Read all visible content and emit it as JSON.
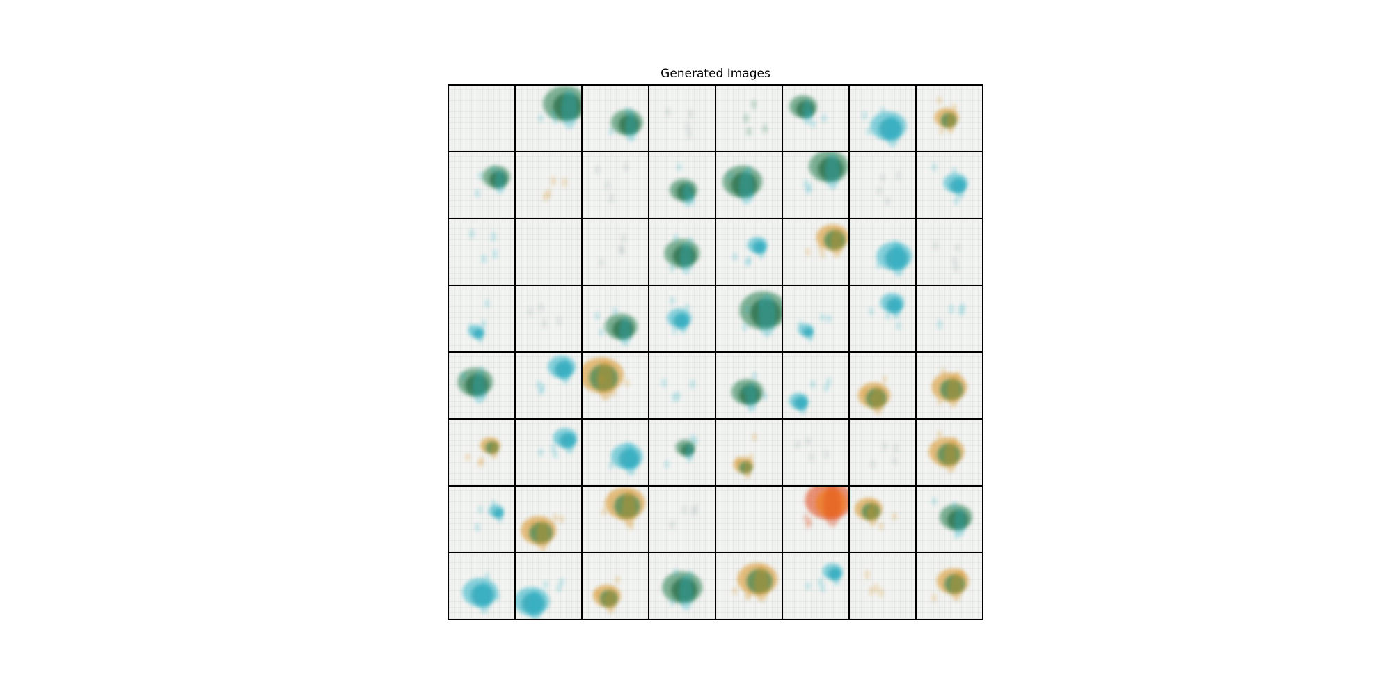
{
  "title": "Generated Images",
  "grid": {
    "rows": 8,
    "cols": 8
  },
  "palette": {
    "green": "#1f7a4a",
    "teal": "#2bb3c8",
    "orange": "#d8901e",
    "red": "#e04010",
    "background": "#f2f2f0",
    "border": "#000000"
  },
  "tiles": [
    [
      {
        "c": "none"
      },
      {
        "c": "green",
        "s": 0.55
      },
      {
        "c": "green",
        "s": 0.4
      },
      {
        "c": "faint"
      },
      {
        "c": "faint-green"
      },
      {
        "c": "green",
        "s": 0.35
      },
      {
        "c": "teal",
        "s": 0.45
      },
      {
        "c": "orange",
        "s": 0.3
      }
    ],
    [
      {
        "c": "green",
        "s": 0.35
      },
      {
        "c": "faint-orange"
      },
      {
        "c": "faint"
      },
      {
        "c": "green",
        "s": 0.35
      },
      {
        "c": "green",
        "s": 0.5
      },
      {
        "c": "green",
        "s": 0.5
      },
      {
        "c": "faint"
      },
      {
        "c": "teal",
        "s": 0.3
      }
    ],
    [
      {
        "c": "faint-teal"
      },
      {
        "c": "none"
      },
      {
        "c": "faint"
      },
      {
        "c": "green",
        "s": 0.45
      },
      {
        "c": "teal",
        "s": 0.25
      },
      {
        "c": "orange",
        "s": 0.4
      },
      {
        "c": "teal",
        "s": 0.45
      },
      {
        "c": "faint"
      }
    ],
    [
      {
        "c": "teal",
        "s": 0.2
      },
      {
        "c": "faint"
      },
      {
        "c": "green",
        "s": 0.4
      },
      {
        "c": "teal",
        "s": 0.3
      },
      {
        "c": "green",
        "s": 0.6
      },
      {
        "c": "teal",
        "s": 0.2
      },
      {
        "c": "teal",
        "s": 0.3
      },
      {
        "c": "faint-teal"
      }
    ],
    [
      {
        "c": "green",
        "s": 0.45
      },
      {
        "c": "teal",
        "s": 0.35
      },
      {
        "c": "orange",
        "s": 0.55
      },
      {
        "c": "faint-teal"
      },
      {
        "c": "green",
        "s": 0.4
      },
      {
        "c": "teal",
        "s": 0.25
      },
      {
        "c": "orange",
        "s": 0.4
      },
      {
        "c": "orange",
        "s": 0.45
      }
    ],
    [
      {
        "c": "orange",
        "s": 0.25
      },
      {
        "c": "teal",
        "s": 0.3
      },
      {
        "c": "teal",
        "s": 0.4
      },
      {
        "c": "green",
        "s": 0.25
      },
      {
        "c": "orange",
        "s": 0.25
      },
      {
        "c": "faint"
      },
      {
        "c": "faint"
      },
      {
        "c": "orange",
        "s": 0.45
      }
    ],
    [
      {
        "c": "teal",
        "s": 0.2
      },
      {
        "c": "orange",
        "s": 0.45
      },
      {
        "c": "orange",
        "s": 0.5
      },
      {
        "c": "faint"
      },
      {
        "c": "none"
      },
      {
        "c": "red",
        "s": 0.6
      },
      {
        "c": "orange",
        "s": 0.35
      },
      {
        "c": "green",
        "s": 0.4
      }
    ],
    [
      {
        "c": "teal",
        "s": 0.45
      },
      {
        "c": "teal",
        "s": 0.45
      },
      {
        "c": "orange",
        "s": 0.35
      },
      {
        "c": "green",
        "s": 0.5
      },
      {
        "c": "orange",
        "s": 0.5
      },
      {
        "c": "teal",
        "s": 0.25
      },
      {
        "c": "faint-orange"
      },
      {
        "c": "orange",
        "s": 0.4
      }
    ]
  ]
}
